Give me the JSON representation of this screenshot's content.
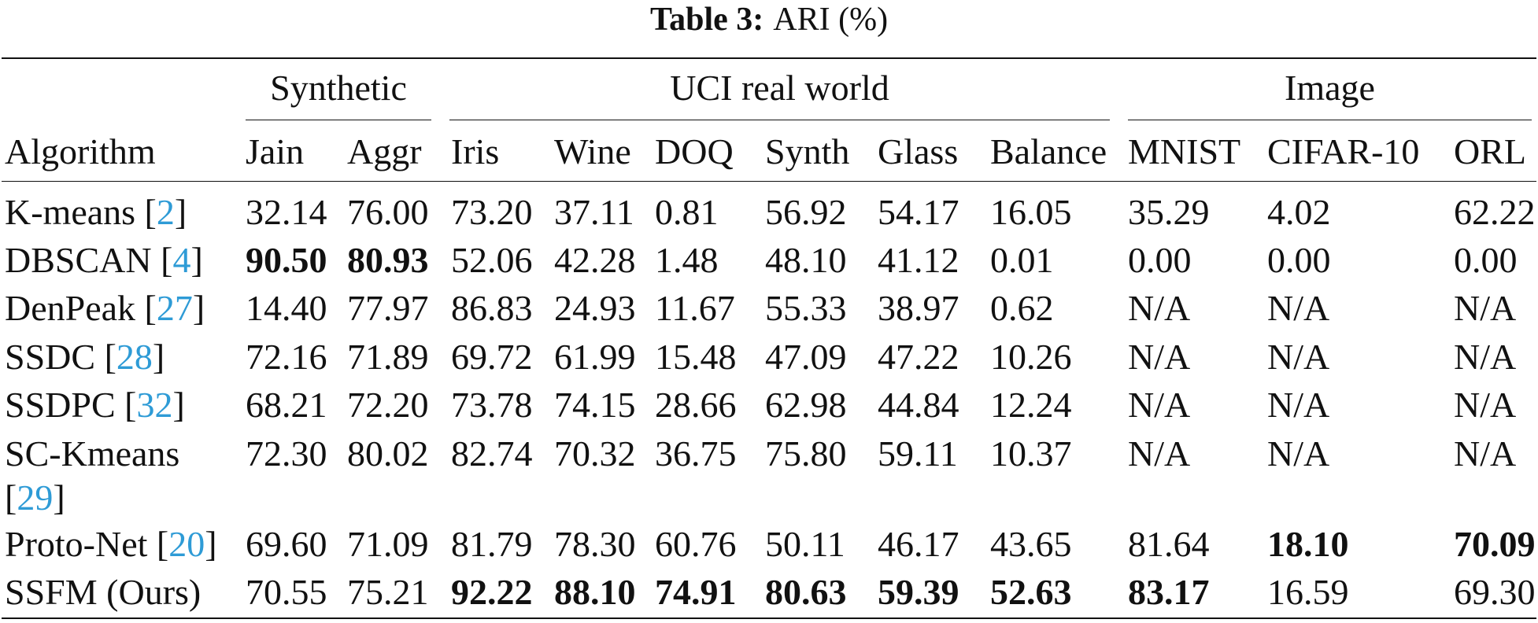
{
  "caption": {
    "label": "Table 3:",
    "text": "ARI (%)"
  },
  "table": {
    "corner": "Algorithm",
    "groups": [
      "Synthetic",
      "UCI real world",
      "Image"
    ],
    "columns": [
      "Jain",
      "Aggr",
      "Iris",
      "Wine",
      "DOQ",
      "Synth",
      "Glass",
      "Balance",
      "MNIST",
      "CIFAR-10",
      "ORL"
    ],
    "link_color": "#2e9bd6",
    "rows": [
      {
        "name": "K-means [2]",
        "cells": [
          "32.14",
          "76.00",
          "73.20",
          "37.11",
          "0.81",
          "56.92",
          "54.17",
          "16.05",
          "35.29",
          "4.02",
          "62.22"
        ],
        "bold_columns": []
      },
      {
        "name": "DBSCAN [4]",
        "cells": [
          "90.50",
          "80.93",
          "52.06",
          "42.28",
          "1.48",
          "48.10",
          "41.12",
          "0.01",
          "0.00",
          "0.00",
          "0.00"
        ],
        "bold_columns": [
          0,
          1
        ]
      },
      {
        "name": "DenPeak [27]",
        "cells": [
          "14.40",
          "77.97",
          "86.83",
          "24.93",
          "11.67",
          "55.33",
          "38.97",
          "0.62",
          "N/A",
          "N/A",
          "N/A"
        ],
        "bold_columns": []
      },
      {
        "name": "SSDC [28]",
        "cells": [
          "72.16",
          "71.89",
          "69.72",
          "61.99",
          "15.48",
          "47.09",
          "47.22",
          "10.26",
          "N/A",
          "N/A",
          "N/A"
        ],
        "bold_columns": []
      },
      {
        "name": "SSDPC [32]",
        "cells": [
          "68.21",
          "72.20",
          "73.78",
          "74.15",
          "28.66",
          "62.98",
          "44.84",
          "12.24",
          "N/A",
          "N/A",
          "N/A"
        ],
        "bold_columns": []
      },
      {
        "name": "SC-Kmeans [29]",
        "cells": [
          "72.30",
          "80.02",
          "82.74",
          "70.32",
          "36.75",
          "75.80",
          "59.11",
          "10.37",
          "N/A",
          "N/A",
          "N/A"
        ],
        "bold_columns": []
      },
      {
        "name": "Proto-Net [20]",
        "cells": [
          "69.60",
          "71.09",
          "81.79",
          "78.30",
          "60.76",
          "50.11",
          "46.17",
          "43.65",
          "81.64",
          "18.10",
          "70.09"
        ],
        "bold_columns": [
          9,
          10
        ]
      },
      {
        "name": "SSFM (Ours)",
        "cells": [
          "70.55",
          "75.21",
          "92.22",
          "88.10",
          "74.91",
          "80.63",
          "59.39",
          "52.63",
          "83.17",
          "16.59",
          "69.30"
        ],
        "bold_columns": [
          2,
          3,
          4,
          5,
          6,
          7,
          8
        ]
      }
    ]
  }
}
